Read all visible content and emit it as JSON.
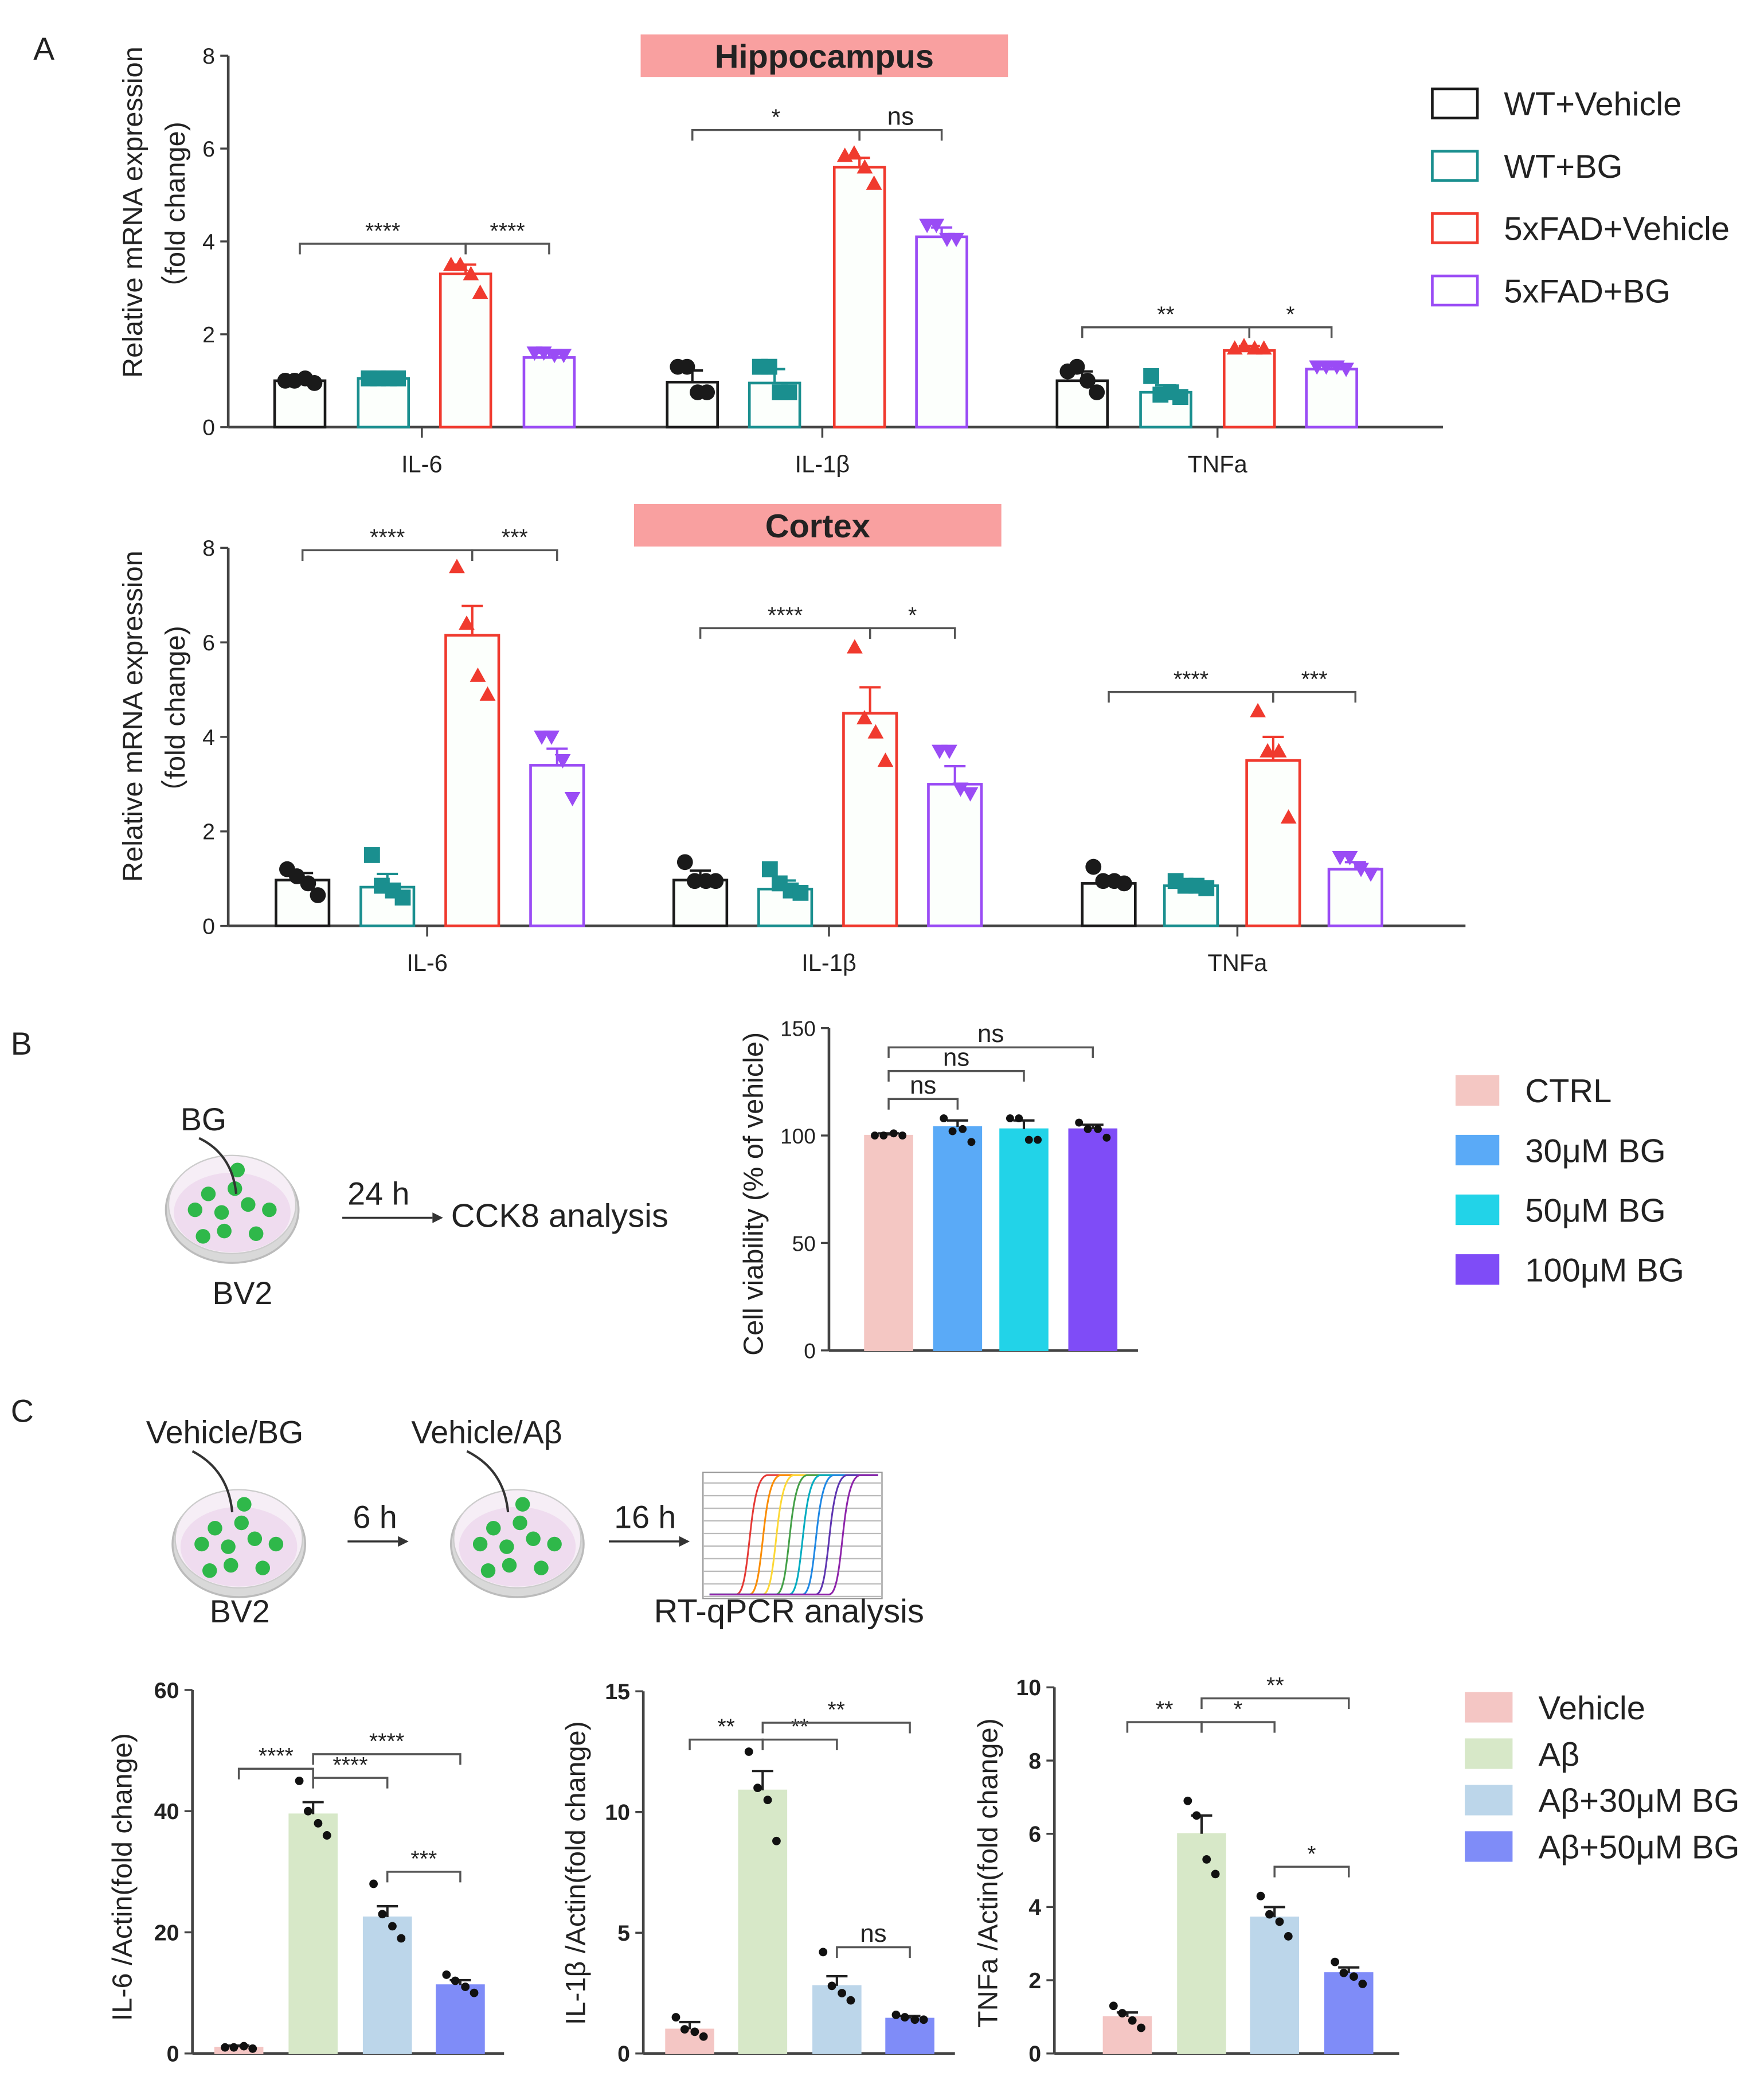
{
  "panels": {
    "a": "A",
    "b": "B",
    "c": "C"
  },
  "diagram_b": {
    "treatment": "BG",
    "time": "24 h",
    "assay": "CCK8 analysis",
    "cells": "BV2"
  },
  "diagram_c": {
    "treatment1": "Vehicle/BG",
    "time1": "6 h",
    "treatment2": "Vehicle/Aβ",
    "time2": "16 h",
    "cells": "BV2",
    "assay": "RT-qPCR analysis"
  },
  "chart_data": [
    {
      "type": "bar",
      "title": "Hippocampus",
      "ylabel": [
        "Relative mRNA expression",
        "（fold  change)"
      ],
      "ylim": [
        0,
        8
      ],
      "yticks": [
        "0",
        "2",
        "4",
        "6",
        "8"
      ],
      "categories": [
        "IL-6",
        "IL-1β",
        "TNFa"
      ],
      "series": [
        {
          "name": "WT+Vehicle",
          "color": "#1a1a1a",
          "fill": "#ffffff",
          "marker": "circle",
          "values": [
            1.0,
            0.97,
            1.0
          ],
          "errors": [
            0.05,
            0.25,
            0.2
          ],
          "points": [
            [
              1.0,
              1.0,
              1.05,
              0.95
            ],
            [
              1.3,
              1.3,
              0.75,
              0.75
            ],
            [
              1.2,
              1.3,
              1.0,
              0.75
            ]
          ]
        },
        {
          "name": "WT+BG",
          "color": "#1a8f8f",
          "fill": "#ffffff",
          "marker": "square",
          "values": [
            1.05,
            0.95,
            0.75
          ],
          "errors": [
            0.05,
            0.3,
            0.15
          ],
          "points": [
            [
              1.05,
              1.05,
              1.05,
              1.05
            ],
            [
              1.3,
              1.3,
              0.75,
              0.75
            ],
            [
              1.1,
              0.7,
              0.75,
              0.65
            ]
          ]
        },
        {
          "name": "5xFAD+Vehicle",
          "color": "#f03a2e",
          "fill": "#ffffff",
          "marker": "triangle-up",
          "values": [
            3.3,
            5.6,
            1.65
          ],
          "errors": [
            0.2,
            0.2,
            0.1
          ],
          "points": [
            [
              3.5,
              3.5,
              3.3,
              2.9
            ],
            [
              5.85,
              5.9,
              5.6,
              5.25
            ],
            [
              1.7,
              1.75,
              1.7,
              1.7
            ]
          ]
        },
        {
          "name": "5xFAD+BG",
          "color": "#9a4cf5",
          "fill": "#ffffff",
          "marker": "triangle-down",
          "values": [
            1.5,
            4.1,
            1.25
          ],
          "errors": [
            0.1,
            0.2,
            0.08
          ],
          "points": [
            [
              1.6,
              1.6,
              1.55,
              1.55
            ],
            [
              4.35,
              4.35,
              4.05,
              4.05
            ],
            [
              1.3,
              1.3,
              1.3,
              1.25
            ]
          ]
        }
      ],
      "significance": [
        {
          "category": 0,
          "from": 0,
          "to": 2,
          "level": 3.95,
          "label": "****"
        },
        {
          "category": 0,
          "from": 2,
          "to": 3,
          "level": 3.95,
          "label": "****"
        },
        {
          "category": 1,
          "from": 0,
          "to": 2,
          "level": 6.4,
          "label": "*"
        },
        {
          "category": 1,
          "from": 2,
          "to": 3,
          "level": 6.4,
          "label": "ns"
        },
        {
          "category": 2,
          "from": 0,
          "to": 2,
          "level": 2.15,
          "label": "**"
        },
        {
          "category": 2,
          "from": 2,
          "to": 3,
          "level": 2.15,
          "label": "*"
        }
      ]
    },
    {
      "type": "bar",
      "title": "Cortex",
      "ylabel": [
        "Relative mRNA expression",
        "（fold  change)"
      ],
      "ylim": [
        0,
        8
      ],
      "yticks": [
        "0",
        "2",
        "4",
        "6",
        "8"
      ],
      "categories": [
        "IL-6",
        "IL-1β",
        "TNFa"
      ],
      "series": [
        {
          "name": "WT+Vehicle",
          "color": "#1a1a1a",
          "fill": "#ffffff",
          "marker": "circle",
          "values": [
            0.97,
            0.97,
            0.9
          ],
          "errors": [
            0.15,
            0.2,
            0.15
          ],
          "points": [
            [
              1.2,
              1.05,
              0.9,
              0.65
            ],
            [
              1.35,
              0.95,
              0.95,
              0.95
            ],
            [
              1.25,
              0.95,
              0.95,
              0.9
            ]
          ]
        },
        {
          "name": "WT+BG",
          "color": "#1a8f8f",
          "fill": "#ffffff",
          "marker": "square",
          "values": [
            0.82,
            0.78,
            0.85
          ],
          "errors": [
            0.28,
            0.18,
            0.08
          ],
          "points": [
            [
              1.5,
              0.85,
              0.75,
              0.6
            ],
            [
              1.2,
              0.9,
              0.75,
              0.7
            ],
            [
              0.95,
              0.85,
              0.85,
              0.8
            ]
          ]
        },
        {
          "name": "5xFAD+Vehicle",
          "color": "#f03a2e",
          "fill": "#ffffff",
          "marker": "triangle-up",
          "values": [
            6.15,
            4.5,
            3.5
          ],
          "errors": [
            0.62,
            0.55,
            0.5
          ],
          "points": [
            [
              7.6,
              6.4,
              5.3,
              4.9
            ],
            [
              5.9,
              4.4,
              4.1,
              3.5
            ],
            [
              4.55,
              3.7,
              3.7,
              2.3
            ]
          ]
        },
        {
          "name": "5xFAD+BG",
          "color": "#9a4cf5",
          "fill": "#ffffff",
          "marker": "triangle-down",
          "values": [
            3.4,
            3.0,
            1.2
          ],
          "errors": [
            0.35,
            0.38,
            0.15
          ],
          "points": [
            [
              4.0,
              4.0,
              3.5,
              2.7
            ],
            [
              3.7,
              3.7,
              2.9,
              2.8
            ],
            [
              1.45,
              1.45,
              1.2,
              1.1
            ]
          ]
        }
      ],
      "significance": [
        {
          "category": 0,
          "from": 0,
          "to": 2,
          "level": 7.95,
          "label": "****"
        },
        {
          "category": 0,
          "from": 2,
          "to": 3,
          "level": 7.95,
          "label": "***"
        },
        {
          "category": 1,
          "from": 0,
          "to": 2,
          "level": 6.3,
          "label": "****"
        },
        {
          "category": 1,
          "from": 2,
          "to": 3,
          "level": 6.3,
          "label": "*"
        },
        {
          "category": 2,
          "from": 0,
          "to": 2,
          "level": 4.95,
          "label": "****"
        },
        {
          "category": 2,
          "from": 2,
          "to": 3,
          "level": 4.95,
          "label": "***"
        }
      ]
    },
    {
      "type": "bar",
      "title": "",
      "ylabel": [
        "Cell viability (% of vehicle)"
      ],
      "ylim": [
        0,
        150
      ],
      "yticks": [
        "0",
        "50",
        "100",
        "150"
      ],
      "categories": [
        ""
      ],
      "series": [
        {
          "name": "CTRL",
          "color": "#f4c7c3",
          "fill": "#f4c7c3",
          "marker": "circle",
          "values": [
            100
          ],
          "errors": [
            1
          ],
          "points": [
            [
              100,
              100,
              101,
              100
            ]
          ]
        },
        {
          "name": "30μM BG",
          "color": "#5aaaf7",
          "fill": "#5aaaf7",
          "marker": "circle",
          "values": [
            104
          ],
          "errors": [
            3
          ],
          "points": [
            [
              108,
              102,
              103,
              97
            ]
          ]
        },
        {
          "name": "50μM BG",
          "color": "#22d3e8",
          "fill": "#22d3e8",
          "marker": "circle",
          "values": [
            103
          ],
          "errors": [
            4
          ],
          "points": [
            [
              108,
              108,
              98,
              98
            ]
          ]
        },
        {
          "name": "100μM BG",
          "color": "#7f4cf7",
          "fill": "#7f4cf7",
          "marker": "circle",
          "values": [
            103
          ],
          "errors": [
            2
          ],
          "points": [
            [
              106,
              103,
              103,
              99
            ]
          ]
        }
      ],
      "significance": [
        {
          "category": 0,
          "from": 0,
          "to": 1,
          "level": 117,
          "label": "ns"
        },
        {
          "category": 0,
          "from": 0,
          "to": 2,
          "level": 130,
          "label": "ns"
        },
        {
          "category": 0,
          "from": 0,
          "to": 3,
          "level": 141,
          "label": "ns"
        }
      ]
    },
    {
      "type": "bar",
      "title": "",
      "ylabel": [
        "IL-6 /Actin(fold change)"
      ],
      "ylim": [
        0,
        60
      ],
      "yticks": [
        "0",
        "20",
        "40",
        "60"
      ],
      "categories": [
        ""
      ],
      "series": [
        {
          "name": "Vehicle",
          "color": "#f4c6c4",
          "fill": "#f4c6c4",
          "marker": "circle",
          "values": [
            1
          ],
          "errors": [
            0.3
          ],
          "points": [
            [
              1,
              1,
              1.2,
              0.8
            ]
          ]
        },
        {
          "name": "Aβ",
          "color": "#d7e8c8",
          "fill": "#d7e8c8",
          "marker": "circle",
          "values": [
            39.5
          ],
          "errors": [
            2
          ],
          "points": [
            [
              45,
              40,
              38,
              36
            ]
          ]
        },
        {
          "name": "Aβ+30μM BG",
          "color": "#bcd6ea",
          "fill": "#bcd6ea",
          "marker": "circle",
          "values": [
            22.5
          ],
          "errors": [
            1.8
          ],
          "points": [
            [
              28,
              23,
              21,
              19
            ]
          ]
        },
        {
          "name": "Aβ+50μM BG",
          "color": "#7f8cf8",
          "fill": "#7f8cf8",
          "marker": "circle",
          "values": [
            11.3
          ],
          "errors": [
            0.8
          ],
          "points": [
            [
              13,
              12,
              11,
              10
            ]
          ]
        }
      ],
      "significance": [
        {
          "category": 0,
          "from": 0,
          "to": 1,
          "level": 47,
          "label": "****"
        },
        {
          "category": 0,
          "from": 1,
          "to": 2,
          "level": 45.5,
          "label": "****"
        },
        {
          "category": 0,
          "from": 1,
          "to": 3,
          "level": 49.4,
          "label": "****"
        },
        {
          "category": 0,
          "from": 2,
          "to": 3,
          "level": 30,
          "label": "***"
        }
      ]
    },
    {
      "type": "bar",
      "title": "",
      "ylabel": [
        "IL-1β /Actin(fold change)"
      ],
      "ylim": [
        0,
        15
      ],
      "yticks": [
        "0",
        "5",
        "10",
        "15"
      ],
      "categories": [
        ""
      ],
      "series": [
        {
          "name": "Vehicle",
          "color": "#f4c6c4",
          "fill": "#f4c6c4",
          "marker": "circle",
          "values": [
            1
          ],
          "errors": [
            0.3
          ],
          "points": [
            [
              1.5,
              1,
              0.9,
              0.7
            ]
          ]
        },
        {
          "name": "Aβ",
          "color": "#d7e8c8",
          "fill": "#d7e8c8",
          "marker": "circle",
          "values": [
            10.9
          ],
          "errors": [
            0.8
          ],
          "points": [
            [
              12.5,
              11,
              10.5,
              8.8
            ]
          ]
        },
        {
          "name": "Aβ+30μM BG",
          "color": "#bcd6ea",
          "fill": "#bcd6ea",
          "marker": "circle",
          "values": [
            2.8
          ],
          "errors": [
            0.4
          ],
          "points": [
            [
              4.2,
              2.8,
              2.5,
              2.2
            ]
          ]
        },
        {
          "name": "Aβ+50μM BG",
          "color": "#7f8cf8",
          "fill": "#7f8cf8",
          "marker": "circle",
          "values": [
            1.45
          ],
          "errors": [
            0.1
          ],
          "points": [
            [
              1.6,
              1.5,
              1.4,
              1.4
            ]
          ]
        }
      ],
      "significance": [
        {
          "category": 0,
          "from": 0,
          "to": 1,
          "level": 13.0,
          "label": "**"
        },
        {
          "category": 0,
          "from": 1,
          "to": 2,
          "level": 13.0,
          "label": "**"
        },
        {
          "category": 0,
          "from": 1,
          "to": 3,
          "level": 13.7,
          "label": "**"
        },
        {
          "category": 0,
          "from": 2,
          "to": 3,
          "level": 4.4,
          "label": "ns"
        }
      ]
    },
    {
      "type": "bar",
      "title": "",
      "ylabel": [
        "TNFa /Actin(fold change)"
      ],
      "ylim": [
        0,
        10
      ],
      "yticks": [
        "0",
        "2",
        "4",
        "6",
        "8",
        "10"
      ],
      "categories": [
        ""
      ],
      "series": [
        {
          "name": "Vehicle",
          "color": "#f4c6c4",
          "fill": "#f4c6c4",
          "marker": "circle",
          "values": [
            1
          ],
          "errors": [
            0.12
          ],
          "points": [
            [
              1.3,
              1.1,
              0.9,
              0.7
            ]
          ]
        },
        {
          "name": "Aβ",
          "color": "#d7e8c8",
          "fill": "#d7e8c8",
          "marker": "circle",
          "values": [
            6
          ],
          "errors": [
            0.5
          ],
          "points": [
            [
              6.9,
              6.5,
              5.3,
              4.9
            ]
          ]
        },
        {
          "name": "Aβ+30μM BG",
          "color": "#bcd6ea",
          "fill": "#bcd6ea",
          "marker": "circle",
          "values": [
            3.72
          ],
          "errors": [
            0.28
          ],
          "points": [
            [
              4.3,
              3.8,
              3.6,
              3.2
            ]
          ]
        },
        {
          "name": "Aβ+50μM BG",
          "color": "#7f8cf8",
          "fill": "#7f8cf8",
          "marker": "circle",
          "values": [
            2.2
          ],
          "errors": [
            0.15
          ],
          "points": [
            [
              2.5,
              2.2,
              2.1,
              1.9
            ]
          ]
        }
      ],
      "significance": [
        {
          "category": 0,
          "from": 0,
          "to": 1,
          "level": 9.05,
          "label": "**"
        },
        {
          "category": 0,
          "from": 1,
          "to": 2,
          "level": 9.05,
          "label": "*"
        },
        {
          "category": 0,
          "from": 1,
          "to": 3,
          "level": 9.7,
          "label": "**"
        },
        {
          "category": 0,
          "from": 2,
          "to": 3,
          "level": 5.1,
          "label": "*"
        }
      ]
    }
  ]
}
